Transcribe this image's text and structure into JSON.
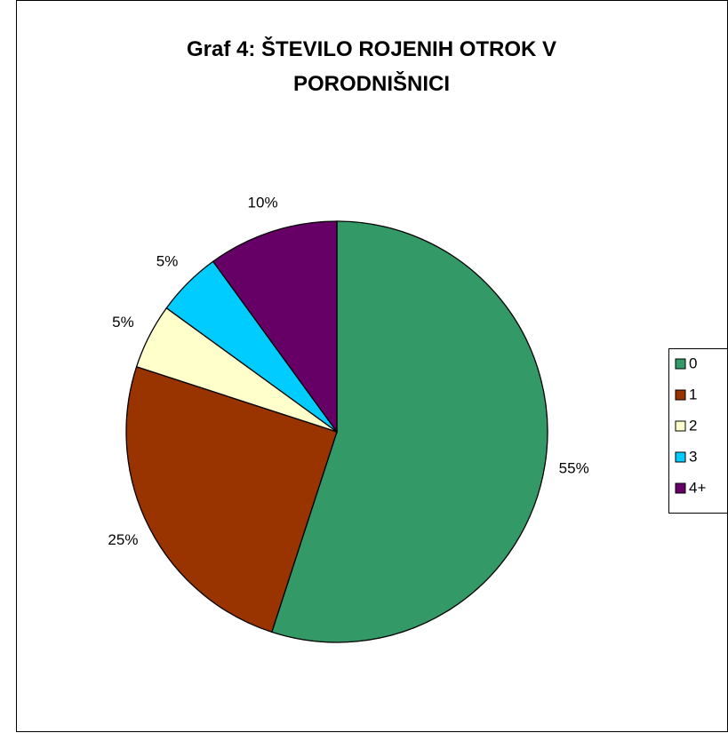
{
  "chart_data": {
    "type": "pie",
    "title": "Graf 4: ŠTEVILO ROJENIH OTROK V PORODNIŠNICI",
    "categories": [
      "0",
      "1",
      "2",
      "3",
      "4+"
    ],
    "values": [
      55,
      25,
      5,
      5,
      10
    ],
    "value_labels": [
      "55%",
      "25%",
      "5%",
      "5%",
      "10%"
    ],
    "colors": [
      "#339966",
      "#993300",
      "#ffffcc",
      "#00ccff",
      "#660066"
    ],
    "legend": "right"
  }
}
